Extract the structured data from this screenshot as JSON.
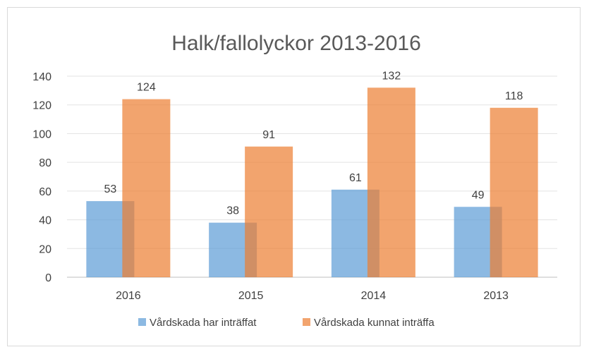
{
  "chart_data": {
    "type": "bar",
    "title": "Halk/fallolyckor 2013-2016",
    "xlabel": "",
    "ylabel": "",
    "categories": [
      "2016",
      "2015",
      "2014",
      "2013"
    ],
    "series": [
      {
        "name": "Vårdskada har inträffat",
        "values": [
          53,
          38,
          61,
          49
        ],
        "color": "#5b9bd5"
      },
      {
        "name": "Vårdskada kunnat inträffa",
        "values": [
          124,
          91,
          132,
          118
        ],
        "color": "#ed7d31"
      }
    ],
    "ylim": [
      0,
      140
    ],
    "yticks": [
      "0",
      "20",
      "40",
      "60",
      "80",
      "100",
      "120",
      "140"
    ],
    "grid": true,
    "legend": "bottom",
    "data_labels": true,
    "bar_opacity": 0.7
  }
}
